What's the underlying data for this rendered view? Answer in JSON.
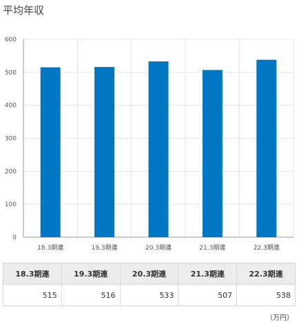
{
  "title": "平均年収",
  "unit": "（万円）",
  "colors": {
    "bar": "#0077c2",
    "grid": "#e3e3e3",
    "axis": "#999999"
  },
  "chart_data": {
    "type": "bar",
    "title": "平均年収",
    "categories": [
      "18.3期連",
      "19.3期連",
      "20.3期連",
      "21.3期連",
      "22.3期連"
    ],
    "values": [
      515,
      516,
      533,
      507,
      538
    ],
    "ylim": [
      0,
      600
    ],
    "yticks": [
      0,
      100,
      200,
      300,
      400,
      500,
      600
    ],
    "grid": true,
    "xlabel": "",
    "ylabel": ""
  },
  "table": {
    "headers": [
      "18.3期連",
      "19.3期連",
      "20.3期連",
      "21.3期連",
      "22.3期連"
    ],
    "values": [
      "515",
      "516",
      "533",
      "507",
      "538"
    ]
  }
}
